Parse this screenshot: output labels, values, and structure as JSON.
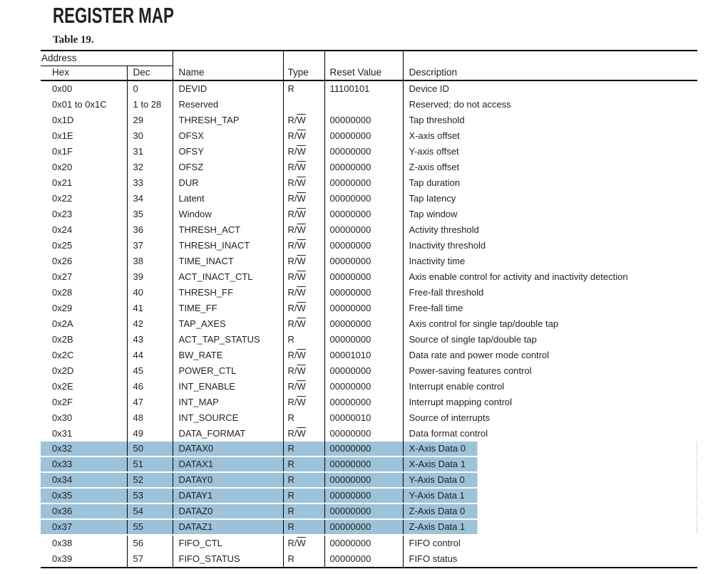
{
  "page_title": "REGISTER MAP",
  "table_caption": "Table 19.",
  "colors": {
    "highlight": "#9cc3d9",
    "text": "#231f20",
    "rule": "#000000"
  },
  "table": {
    "header": {
      "address_group_label": "Address",
      "columns": [
        "Hex",
        "Dec",
        "Name",
        "Type",
        "Reset Value",
        "Description"
      ]
    },
    "rows": [
      {
        "hex": "0x00",
        "dec": "0",
        "name": "DEVID",
        "type": "R",
        "reset": "11100101",
        "desc": "Device ID",
        "highlighted": false
      },
      {
        "hex": "0x01 to 0x1C",
        "dec": "1 to 28",
        "name": "Reserved",
        "type": "",
        "reset": "",
        "desc": "Reserved; do not access",
        "highlighted": false
      },
      {
        "hex": "0x1D",
        "dec": "29",
        "name": "THRESH_TAP",
        "type": "R/W",
        "reset": "00000000",
        "desc": "Tap threshold",
        "highlighted": false
      },
      {
        "hex": "0x1E",
        "dec": "30",
        "name": "OFSX",
        "type": "R/W",
        "reset": "00000000",
        "desc": "X-axis offset",
        "highlighted": false
      },
      {
        "hex": "0x1F",
        "dec": "31",
        "name": "OFSY",
        "type": "R/W",
        "reset": "00000000",
        "desc": "Y-axis offset",
        "highlighted": false
      },
      {
        "hex": "0x20",
        "dec": "32",
        "name": "OFSZ",
        "type": "R/W",
        "reset": "00000000",
        "desc": "Z-axis offset",
        "highlighted": false
      },
      {
        "hex": "0x21",
        "dec": "33",
        "name": "DUR",
        "type": "R/W",
        "reset": "00000000",
        "desc": "Tap duration",
        "highlighted": false
      },
      {
        "hex": "0x22",
        "dec": "34",
        "name": "Latent",
        "type": "R/W",
        "reset": "00000000",
        "desc": "Tap latency",
        "highlighted": false
      },
      {
        "hex": "0x23",
        "dec": "35",
        "name": "Window",
        "type": "R/W",
        "reset": "00000000",
        "desc": "Tap window",
        "highlighted": false
      },
      {
        "hex": "0x24",
        "dec": "36",
        "name": "THRESH_ACT",
        "type": "R/W",
        "reset": "00000000",
        "desc": "Activity threshold",
        "highlighted": false
      },
      {
        "hex": "0x25",
        "dec": "37",
        "name": "THRESH_INACT",
        "type": "R/W",
        "reset": "00000000",
        "desc": "Inactivity threshold",
        "highlighted": false
      },
      {
        "hex": "0x26",
        "dec": "38",
        "name": "TIME_INACT",
        "type": "R/W",
        "reset": "00000000",
        "desc": "Inactivity time",
        "highlighted": false
      },
      {
        "hex": "0x27",
        "dec": "39",
        "name": "ACT_INACT_CTL",
        "type": "R/W",
        "reset": "00000000",
        "desc": "Axis enable control for activity and inactivity detection",
        "highlighted": false
      },
      {
        "hex": "0x28",
        "dec": "40",
        "name": "THRESH_FF",
        "type": "R/W",
        "reset": "00000000",
        "desc": "Free-fall threshold",
        "highlighted": false
      },
      {
        "hex": "0x29",
        "dec": "41",
        "name": "TIME_FF",
        "type": "R/W",
        "reset": "00000000",
        "desc": "Free-fall time",
        "highlighted": false
      },
      {
        "hex": "0x2A",
        "dec": "42",
        "name": "TAP_AXES",
        "type": "R/W",
        "reset": "00000000",
        "desc": "Axis control for single tap/double tap",
        "highlighted": false
      },
      {
        "hex": "0x2B",
        "dec": "43",
        "name": "ACT_TAP_STATUS",
        "type": "R",
        "reset": "00000000",
        "desc": "Source of single tap/double tap",
        "highlighted": false
      },
      {
        "hex": "0x2C",
        "dec": "44",
        "name": "BW_RATE",
        "type": "R/W",
        "reset": "00001010",
        "desc": "Data rate and power mode control",
        "highlighted": false
      },
      {
        "hex": "0x2D",
        "dec": "45",
        "name": "POWER_CTL",
        "type": "R/W",
        "reset": "00000000",
        "desc": "Power-saving features control",
        "highlighted": false
      },
      {
        "hex": "0x2E",
        "dec": "46",
        "name": "INT_ENABLE",
        "type": "R/W",
        "reset": "00000000",
        "desc": "Interrupt enable control",
        "highlighted": false
      },
      {
        "hex": "0x2F",
        "dec": "47",
        "name": "INT_MAP",
        "type": "R/W",
        "reset": "00000000",
        "desc": "Interrupt mapping control",
        "highlighted": false
      },
      {
        "hex": "0x30",
        "dec": "48",
        "name": "INT_SOURCE",
        "type": "R",
        "reset": "00000010",
        "desc": "Source of interrupts",
        "highlighted": false
      },
      {
        "hex": "0x31",
        "dec": "49",
        "name": "DATA_FORMAT",
        "type": "R/W",
        "reset": "00000000",
        "desc": "Data format control",
        "highlighted": false
      },
      {
        "hex": "0x32",
        "dec": "50",
        "name": "DATAX0",
        "type": "R",
        "reset": "00000000",
        "desc": "X-Axis Data 0",
        "highlighted": true
      },
      {
        "hex": "0x33",
        "dec": "51",
        "name": "DATAX1",
        "type": "R",
        "reset": "00000000",
        "desc": "X-Axis Data 1",
        "highlighted": true
      },
      {
        "hex": "0x34",
        "dec": "52",
        "name": "DATAY0",
        "type": "R",
        "reset": "00000000",
        "desc": "Y-Axis Data 0",
        "highlighted": true
      },
      {
        "hex": "0x35",
        "dec": "53",
        "name": "DATAY1",
        "type": "R",
        "reset": "00000000",
        "desc": "Y-Axis Data 1",
        "highlighted": true
      },
      {
        "hex": "0x36",
        "dec": "54",
        "name": "DATAZ0",
        "type": "R",
        "reset": "00000000",
        "desc": "Z-Axis Data 0",
        "highlighted": true
      },
      {
        "hex": "0x37",
        "dec": "55",
        "name": "DATAZ1",
        "type": "R",
        "reset": "00000000",
        "desc": "Z-Axis Data 1",
        "highlighted": true
      },
      {
        "hex": "0x38",
        "dec": "56",
        "name": "FIFO_CTL",
        "type": "R/W",
        "reset": "00000000",
        "desc": "FIFO control",
        "highlighted": false
      },
      {
        "hex": "0x39",
        "dec": "57",
        "name": "FIFO_STATUS",
        "type": "R",
        "reset": "00000000",
        "desc": "FIFO status",
        "highlighted": false
      }
    ]
  }
}
